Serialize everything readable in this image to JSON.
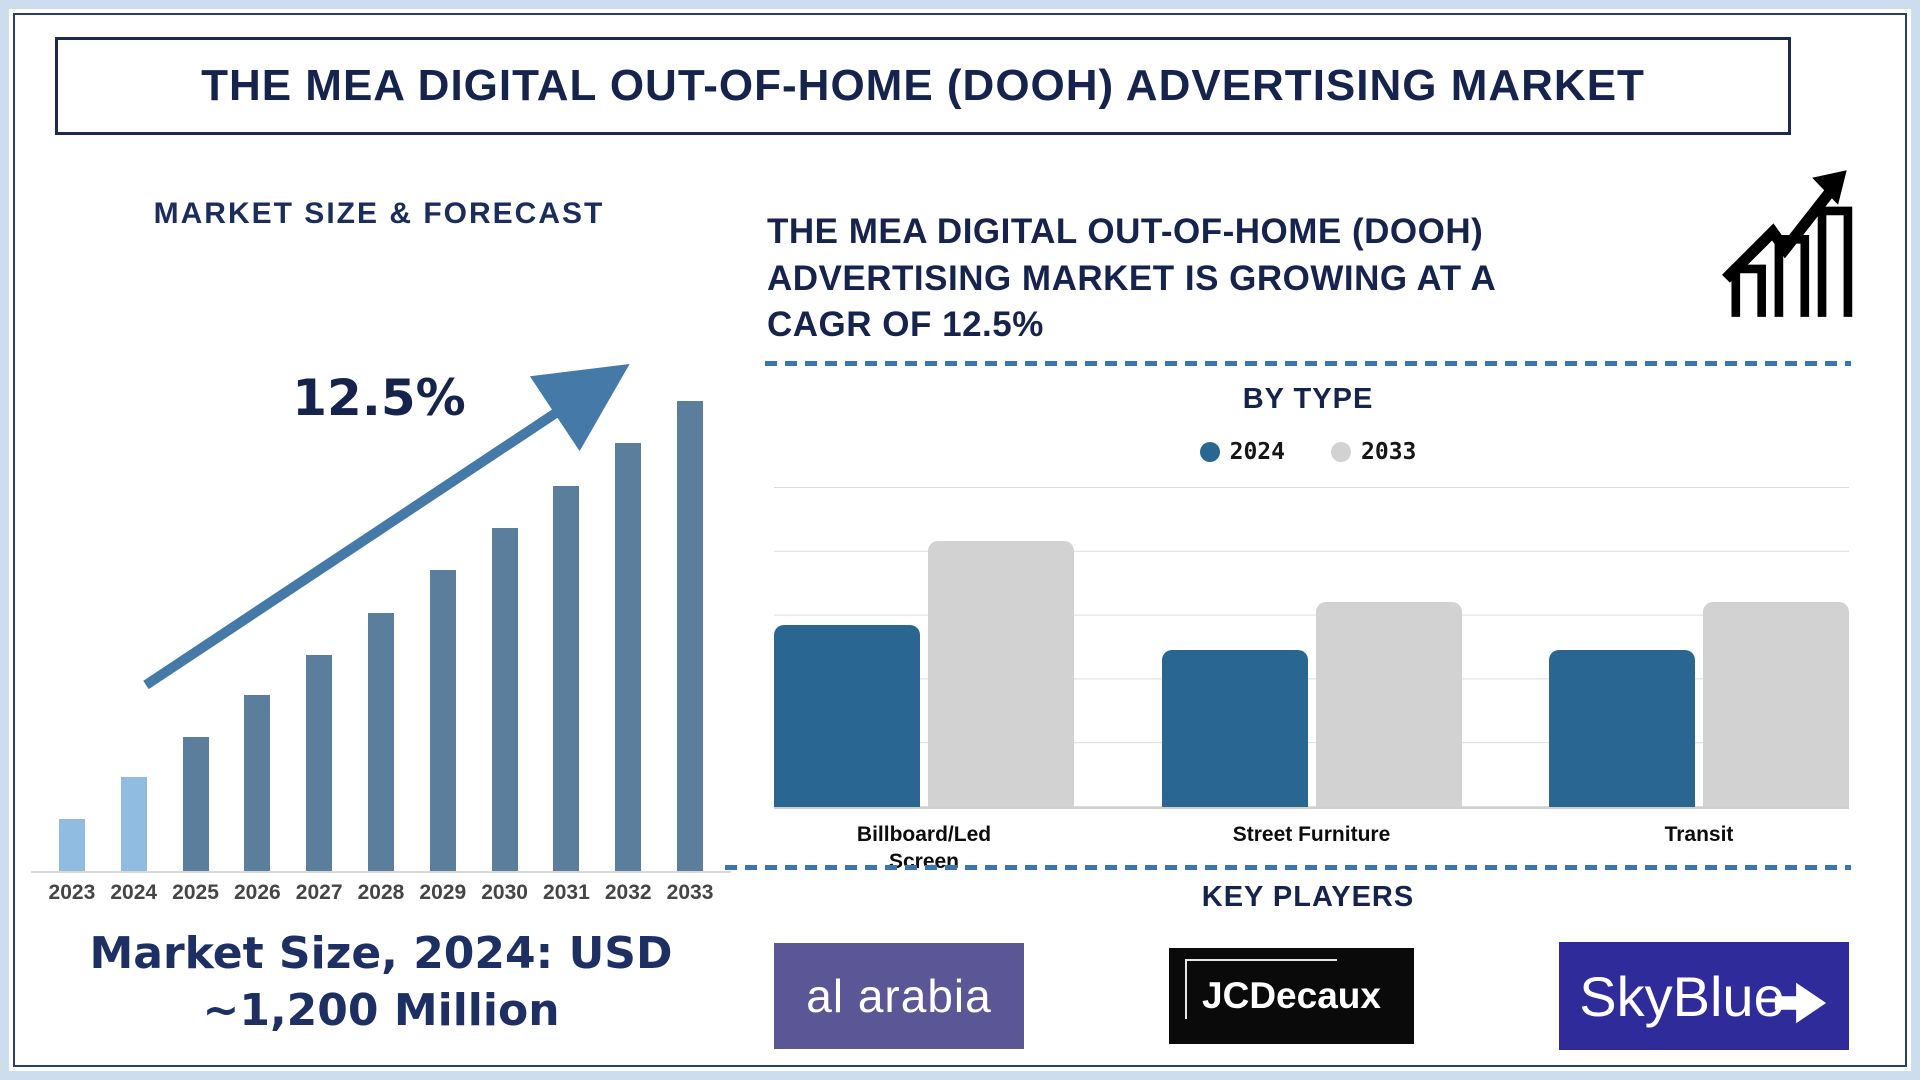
{
  "banner": {
    "title": "THE MEA DIGITAL OUT-OF-HOME (DOOH) ADVERTISING MARKET"
  },
  "market_size_section": {
    "heading": "MARKET SIZE & FORECAST",
    "cagr_annotation": "12.5%",
    "caption": "Market Size, 2024: USD ~1,200 Million"
  },
  "growth_section": {
    "headline_lines": [
      "THE MEA DIGITAL OUT-OF-HOME (DOOH)",
      "ADVERTISING MARKET IS GROWING AT A",
      "CAGR OF 12.5%"
    ],
    "icon": "growth-chart-icon"
  },
  "by_type_section": {
    "title": "BY TYPE"
  },
  "key_players_section": {
    "title": "KEY PLAYERS",
    "players": [
      {
        "name": "al arabia",
        "bg_color": "#5b5796"
      },
      {
        "name": "JCDecaux",
        "bg_color": "#0a0a0a"
      },
      {
        "name": "SkyBlue",
        "bg_color": "#2f2b9a"
      }
    ]
  },
  "chart_data": [
    {
      "id": "market-size-forecast",
      "type": "bar",
      "title": "MARKET SIZE & FORECAST",
      "categories": [
        "2023",
        "2024",
        "2025",
        "2026",
        "2027",
        "2028",
        "2029",
        "2030",
        "2031",
        "2032",
        "2033"
      ],
      "values_relative_height_pct": [
        11,
        20,
        28.5,
        37.5,
        46,
        55,
        64,
        73,
        82,
        91,
        100
      ],
      "anchor_value": {
        "year": "2024",
        "value_usd_million": 1200,
        "label": "USD ~1,200 Million"
      },
      "cagr_pct": 12.5,
      "annotation": "12.5%",
      "xlabel": "",
      "ylabel": "",
      "y_axis_shown": false,
      "grid": false,
      "legend_position": "none",
      "bar_colors": {
        "years_2023_2024": "#90bce2",
        "years_2025_2033": "#5b7e9d"
      }
    },
    {
      "id": "by-type",
      "type": "bar",
      "title": "BY TYPE",
      "categories": [
        "Billboard/Led Screen",
        "Street Furniture",
        "Transit"
      ],
      "series": [
        {
          "name": "2024",
          "color": "#296691",
          "values_relative_height_pct": [
            57,
            49,
            49
          ]
        },
        {
          "name": "2033",
          "color": "#d2d2d2",
          "values_relative_height_pct": [
            83,
            64,
            64
          ]
        }
      ],
      "xlabel": "",
      "ylabel": "",
      "y_axis_shown": false,
      "grid": true,
      "gridline_count": 6,
      "legend_position": "top"
    }
  ],
  "colors": {
    "navy_text": "#16244d",
    "frame": "#cdddee",
    "inner_border": "#2a3f6f",
    "arrow": "#4579a8",
    "dashed_separator": "#3a76ad",
    "gridline": "#dcdcdc",
    "year_label": "#454545"
  }
}
